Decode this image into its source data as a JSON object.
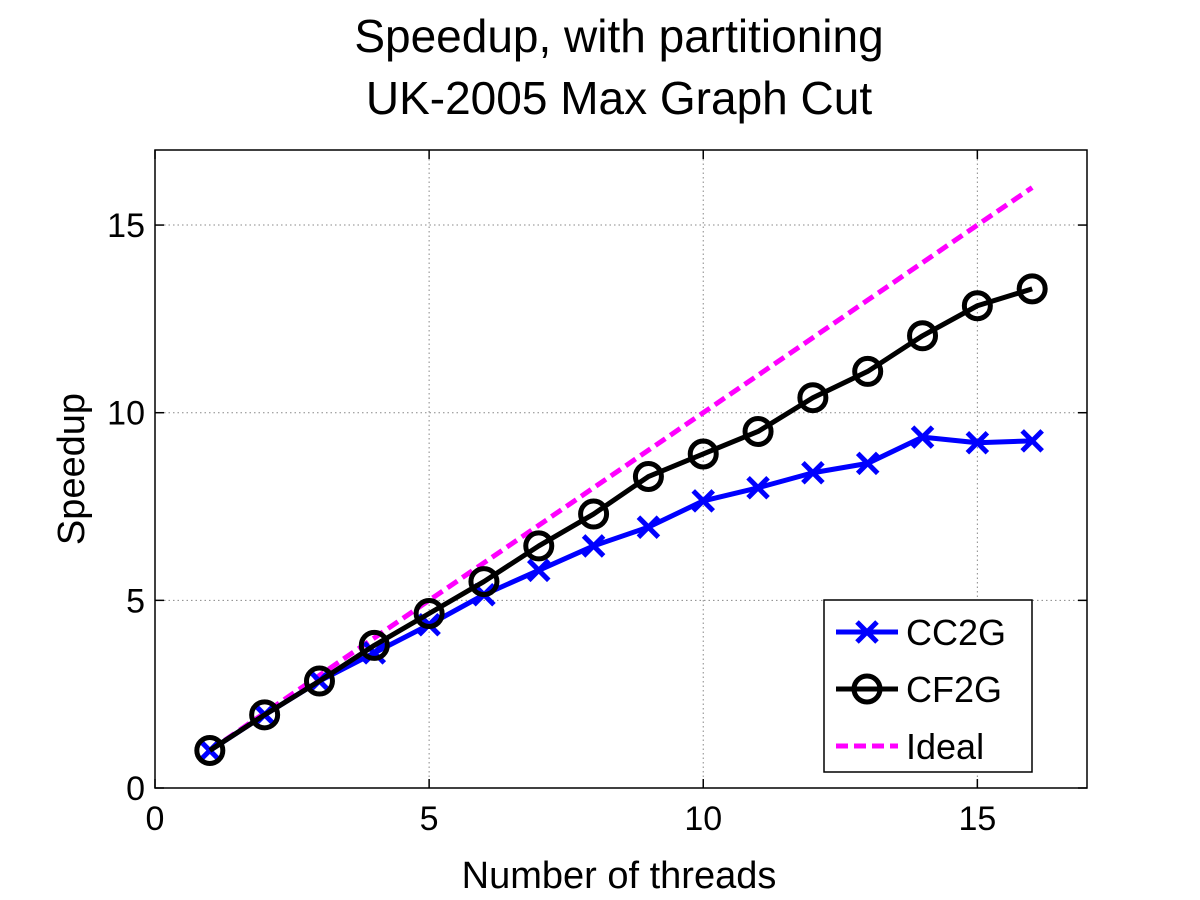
{
  "chart_data": {
    "type": "line",
    "title": [
      "Speedup, with partitioning",
      "UK-2005 Max Graph Cut"
    ],
    "xlabel": "Number of threads",
    "ylabel": "Speedup",
    "xlim": [
      0,
      17
    ],
    "ylim": [
      0,
      17
    ],
    "xticks": [
      0,
      5,
      10,
      15
    ],
    "yticks": [
      0,
      5,
      10,
      15
    ],
    "grid": true,
    "legend_position": "bottom-right",
    "x": [
      1,
      2,
      3,
      4,
      5,
      6,
      7,
      8,
      9,
      10,
      11,
      12,
      13,
      14,
      15,
      16
    ],
    "series": [
      {
        "name": "CC2G",
        "color": "#0000ff",
        "marker": "x",
        "linestyle": "solid",
        "values": [
          1.0,
          1.95,
          2.85,
          3.6,
          4.35,
          5.15,
          5.8,
          6.45,
          6.95,
          7.65,
          8.0,
          8.4,
          8.65,
          9.35,
          9.2,
          9.25
        ]
      },
      {
        "name": "CF2G",
        "color": "#000000",
        "marker": "o",
        "linestyle": "solid",
        "values": [
          1.0,
          1.95,
          2.85,
          3.8,
          4.65,
          5.5,
          6.45,
          7.3,
          8.3,
          8.9,
          9.5,
          10.4,
          11.1,
          12.05,
          12.85,
          13.3
        ]
      },
      {
        "name": "Ideal",
        "color": "#ff00ff",
        "marker": "none",
        "linestyle": "dashed",
        "values": [
          1,
          2,
          3,
          4,
          5,
          6,
          7,
          8,
          9,
          10,
          11,
          12,
          13,
          14,
          15,
          16
        ]
      }
    ]
  }
}
